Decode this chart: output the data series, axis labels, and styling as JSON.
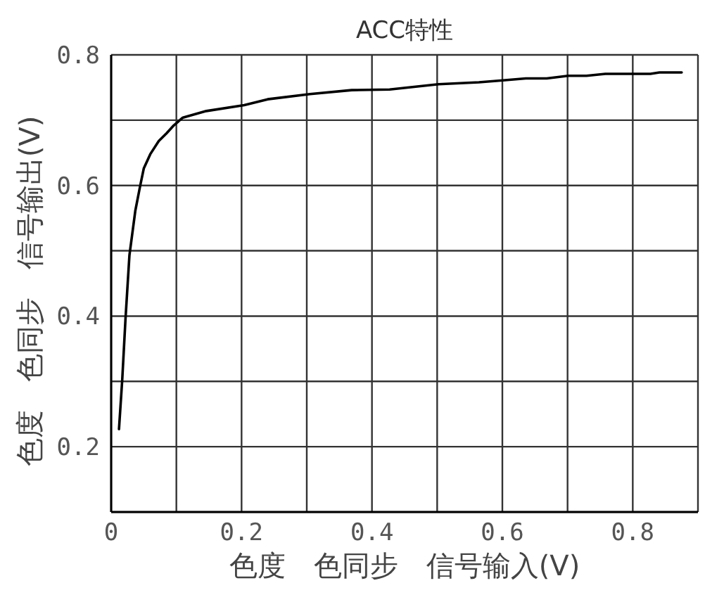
{
  "chart_data": {
    "type": "line",
    "title": "ACC特性",
    "xlabel": "色度　色同步　信号输入(V)",
    "ylabel": "色度　色同步　信号输出(V)",
    "x": [
      0.012,
      0.017,
      0.022,
      0.028,
      0.037,
      0.044,
      0.05,
      0.06,
      0.073,
      0.085,
      0.096,
      0.11,
      0.146,
      0.204,
      0.24,
      0.305,
      0.369,
      0.427,
      0.502,
      0.564,
      0.601,
      0.636,
      0.668,
      0.701,
      0.729,
      0.758,
      0.827,
      0.841,
      0.875
    ],
    "values": [
      0.227,
      0.303,
      0.396,
      0.493,
      0.561,
      0.597,
      0.626,
      0.648,
      0.668,
      0.68,
      0.692,
      0.704,
      0.714,
      0.723,
      0.732,
      0.74,
      0.746,
      0.747,
      0.755,
      0.758,
      0.761,
      0.764,
      0.764,
      0.768,
      0.768,
      0.771,
      0.771,
      0.773,
      0.773
    ],
    "color": "#000000",
    "xlim": [
      0,
      0.9
    ],
    "ylim": [
      0.1,
      0.8
    ],
    "xticks": [
      0,
      {
        "value": 0.1,
        "label": null
      },
      0.2,
      {
        "value": 0.3,
        "label": null
      },
      0.4,
      {
        "value": 0.5,
        "label": null
      },
      0.6,
      {
        "value": 0.7,
        "label": null
      },
      0.8,
      {
        "value": 0.9,
        "label": null
      }
    ],
    "yticks": [
      {
        "value": 0.1,
        "label": null
      },
      0.2,
      {
        "value": 0.3,
        "label": null
      },
      0.4,
      {
        "value": 0.5,
        "label": null
      },
      0.6,
      {
        "value": 0.7,
        "label": null
      },
      0.8
    ],
    "grid": true,
    "marker": "none",
    "line_style": "solid"
  }
}
